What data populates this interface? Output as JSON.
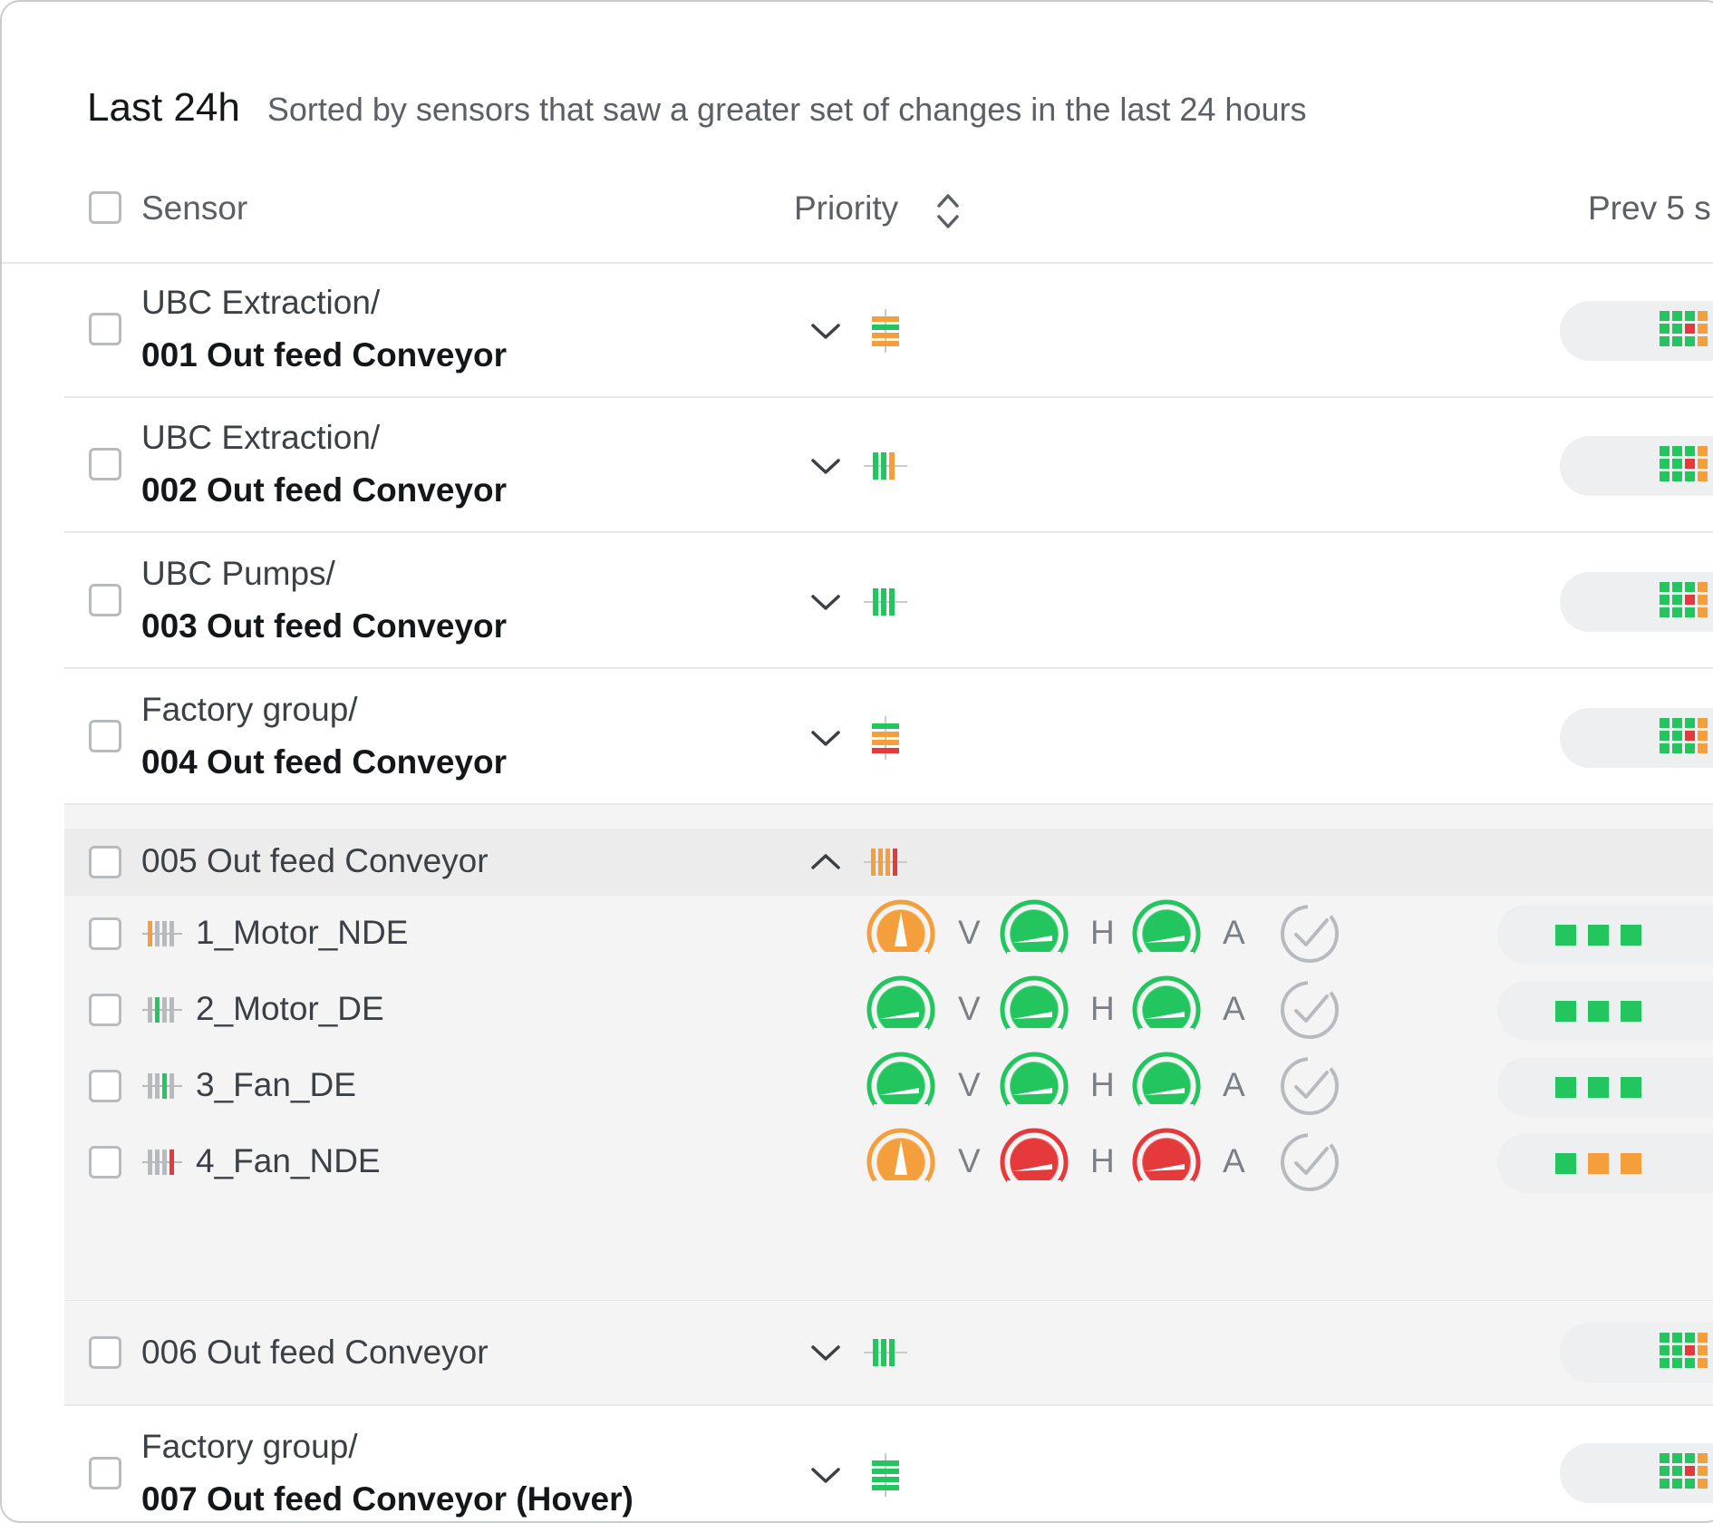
{
  "header": {
    "title": "Last 24h",
    "subtitle": "Sorted by sensors that saw a greater set of changes in the last 24 hours"
  },
  "columns": {
    "sensor": "Sensor",
    "priority": "Priority",
    "prev": "Prev 5 s"
  },
  "colors": {
    "green": "#22c55e",
    "orange": "#f59e3c",
    "red": "#e5393b",
    "gray": "#b7bbc0"
  },
  "rows": [
    {
      "path": "UBC Extraction/",
      "name": "001 Out feed Conveyor",
      "priority_icon": "priority-bars-horizontal-orange-icon"
    },
    {
      "path": "UBC Extraction/",
      "name": "002 Out feed Conveyor",
      "priority_icon": "priority-bars-vertical-green-orange-icon"
    },
    {
      "path": "UBC Pumps/",
      "name": "003 Out feed Conveyor",
      "priority_icon": "priority-bars-vertical-green-icon"
    },
    {
      "path": "Factory group/",
      "name": "004 Out feed Conveyor",
      "priority_icon": "priority-bars-horizontal-orange-red-icon"
    }
  ],
  "group": {
    "name": "005 Out feed Conveyor",
    "priority_icon": "priority-bars-vertical-orange-red-icon",
    "axes": [
      "V",
      "H",
      "A"
    ],
    "sensors": [
      {
        "label": "1_Motor_NDE",
        "gauges": [
          "orange",
          "green",
          "green"
        ],
        "history": [
          "green",
          "green",
          "green"
        ]
      },
      {
        "label": "2_Motor_DE",
        "gauges": [
          "green",
          "green",
          "green"
        ],
        "history": [
          "green",
          "green",
          "green"
        ]
      },
      {
        "label": "3_Fan_DE",
        "gauges": [
          "green",
          "green",
          "green"
        ],
        "history": [
          "green",
          "green",
          "green"
        ]
      },
      {
        "label": "4_Fan_NDE",
        "gauges": [
          "orange",
          "red",
          "red"
        ],
        "history": [
          "green",
          "orange",
          "orange"
        ]
      }
    ]
  },
  "rows_after": [
    {
      "name": "006 Out feed Conveyor",
      "priority_icon": "priority-bars-vertical-green-icon"
    },
    {
      "path": "Factory group/",
      "name": "007 Out feed Conveyor (Hover)",
      "priority_icon": "priority-bars-horizontal-green-icon"
    }
  ]
}
